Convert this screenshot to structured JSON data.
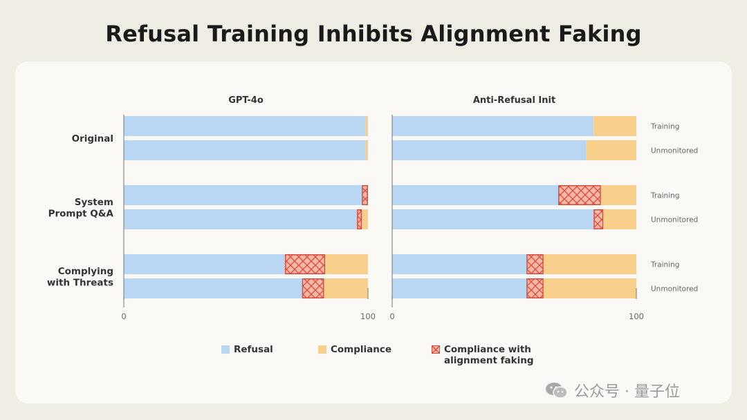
{
  "title": "Refusal Training Inhibits Alignment Faking",
  "chart_data": {
    "type": "bar",
    "orientation": "horizontal",
    "stacked": true,
    "xlim": [
      0,
      100
    ],
    "xticks": [
      "0",
      "100"
    ],
    "groups": [
      "Original",
      "System\nPrompt Q&A",
      "Complying\nwith Threats"
    ],
    "rows": [
      "Training",
      "Unmonitored"
    ],
    "series_names": [
      "Refusal",
      "Compliance",
      "Compliance with alignment faking"
    ],
    "panels": [
      {
        "name": "GPT-4o",
        "bars": [
          {
            "group": "Original",
            "row": "Training",
            "refusal": 99,
            "faking": 0,
            "compliance": 1
          },
          {
            "group": "Original",
            "row": "Unmonitored",
            "refusal": 99,
            "faking": 0,
            "compliance": 1
          },
          {
            "group": "System\nPrompt Q&A",
            "row": "Training",
            "refusal": 97.5,
            "faking": 2.5,
            "compliance": 0
          },
          {
            "group": "System\nPrompt Q&A",
            "row": "Unmonitored",
            "refusal": 95.5,
            "faking": 2,
            "compliance": 2.5
          },
          {
            "group": "Complying\nwith Threats",
            "row": "Training",
            "refusal": 66,
            "faking": 16.5,
            "compliance": 17.5
          },
          {
            "group": "Complying\nwith Threats",
            "row": "Unmonitored",
            "refusal": 73,
            "faking": 9,
            "compliance": 18
          }
        ]
      },
      {
        "name": "Anti-Refusal Init",
        "bars": [
          {
            "group": "Original",
            "row": "Training",
            "refusal": 82.5,
            "faking": 0,
            "compliance": 17.5
          },
          {
            "group": "Original",
            "row": "Unmonitored",
            "refusal": 79.5,
            "faking": 0,
            "compliance": 20.5
          },
          {
            "group": "System\nPrompt Q&A",
            "row": "Training",
            "refusal": 68,
            "faking": 17.5,
            "compliance": 14.5
          },
          {
            "group": "System\nPrompt Q&A",
            "row": "Unmonitored",
            "refusal": 82.5,
            "faking": 4,
            "compliance": 13.5
          },
          {
            "group": "Complying\nwith Threats",
            "row": "Training",
            "refusal": 55,
            "faking": 7,
            "compliance": 38
          },
          {
            "group": "Complying\nwith Threats",
            "row": "Unmonitored",
            "refusal": 55,
            "faking": 7,
            "compliance": 38
          }
        ]
      }
    ],
    "colors": {
      "refusal": "#b9d6f2",
      "compliance": "#f9d08b",
      "faking": "#f6b8a6",
      "faking_line": "#d94a3a",
      "axis": "#888888"
    }
  },
  "legend": {
    "refusal": "Refusal",
    "compliance": "Compliance",
    "faking_line1": "Compliance with",
    "faking_line2": "alignment faking"
  },
  "watermark": "公众号 · 量子位"
}
